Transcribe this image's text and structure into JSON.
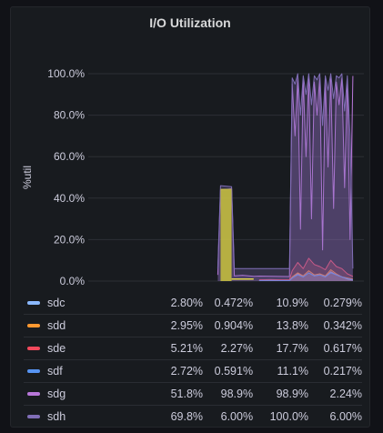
{
  "panel": {
    "title": "I/O Utilization"
  },
  "chart_data": {
    "type": "area",
    "title": "I/O Utilization",
    "ylabel": "%util",
    "xlabel": "",
    "ylim": [
      0,
      100
    ],
    "yticks": [
      "0.0%",
      "20.0%",
      "40.0%",
      "60.0%",
      "80.0%",
      "100.0%"
    ],
    "grid": true,
    "legend_placement": "bottom",
    "time_window": [
      0,
      100
    ],
    "series": [
      {
        "name": "sdc",
        "color": "#8ab8ff",
        "mean": "2.80%",
        "last": "0.472%",
        "max": "10.9%",
        "min": "0.279%",
        "points": [
          [
            62,
            0.3
          ],
          [
            66,
            0.4
          ],
          [
            70,
            0.3
          ],
          [
            73,
            0.3
          ],
          [
            74,
            1.5
          ],
          [
            76,
            3.5
          ],
          [
            78,
            2.0
          ],
          [
            80,
            4.0
          ],
          [
            82,
            2.5
          ],
          [
            84,
            3.0
          ],
          [
            86,
            2.0
          ],
          [
            88,
            4.5
          ],
          [
            90,
            3.0
          ],
          [
            92,
            2.0
          ],
          [
            94,
            1.0
          ],
          [
            96,
            0.5
          ]
        ]
      },
      {
        "name": "sdd",
        "color": "#ff9830",
        "mean": "2.95%",
        "last": "0.904%",
        "max": "13.8%",
        "min": "0.342%",
        "points": [
          [
            62,
            0.3
          ],
          [
            66,
            0.4
          ],
          [
            70,
            0.3
          ],
          [
            73,
            0.3
          ],
          [
            74,
            2.0
          ],
          [
            76,
            4.0
          ],
          [
            78,
            2.5
          ],
          [
            80,
            5.0
          ],
          [
            82,
            3.0
          ],
          [
            84,
            3.5
          ],
          [
            86,
            2.5
          ],
          [
            88,
            5.5
          ],
          [
            90,
            3.5
          ],
          [
            92,
            2.0
          ],
          [
            94,
            1.5
          ],
          [
            96,
            0.9
          ]
        ]
      },
      {
        "name": "sde",
        "color": "#f2495c",
        "mean": "5.21%",
        "last": "2.27%",
        "max": "17.7%",
        "min": "0.617%",
        "points": [
          [
            62,
            0.6
          ],
          [
            66,
            0.7
          ],
          [
            70,
            0.6
          ],
          [
            73,
            0.6
          ],
          [
            74,
            5.0
          ],
          [
            76,
            9.0
          ],
          [
            78,
            6.0
          ],
          [
            80,
            11.0
          ],
          [
            82,
            8.0
          ],
          [
            84,
            7.0
          ],
          [
            86,
            5.5
          ],
          [
            88,
            10.0
          ],
          [
            90,
            7.0
          ],
          [
            92,
            6.0
          ],
          [
            94,
            3.5
          ],
          [
            96,
            2.3
          ]
        ]
      },
      {
        "name": "sdf",
        "color": "#5794f2",
        "mean": "2.72%",
        "last": "0.591%",
        "max": "11.1%",
        "min": "0.217%",
        "points": [
          [
            62,
            0.2
          ],
          [
            66,
            0.3
          ],
          [
            70,
            0.2
          ],
          [
            73,
            0.2
          ],
          [
            74,
            1.5
          ],
          [
            76,
            3.0
          ],
          [
            78,
            2.0
          ],
          [
            80,
            4.0
          ],
          [
            82,
            2.5
          ],
          [
            84,
            3.0
          ],
          [
            86,
            2.0
          ],
          [
            88,
            4.0
          ],
          [
            90,
            3.0
          ],
          [
            92,
            2.0
          ],
          [
            94,
            1.2
          ],
          [
            96,
            0.6
          ]
        ]
      },
      {
        "name": "sdg",
        "color": "#b877d9",
        "mean": "51.8%",
        "last": "98.9%",
        "max": "98.9%",
        "min": "2.24%",
        "points": [
          [
            47,
            3.0
          ],
          [
            48,
            44.0
          ],
          [
            52,
            44.5
          ],
          [
            53,
            2.5
          ],
          [
            56,
            2.8
          ],
          [
            60,
            2.3
          ],
          [
            62,
            2.4
          ],
          [
            73,
            2.2
          ],
          [
            74,
            95.0
          ],
          [
            75,
            70.0
          ],
          [
            76,
            98.0
          ],
          [
            77,
            25.0
          ],
          [
            78,
            97.0
          ],
          [
            79,
            60.0
          ],
          [
            80,
            98.0
          ],
          [
            81,
            30.0
          ],
          [
            82,
            96.0
          ],
          [
            83,
            80.0
          ],
          [
            84,
            98.0
          ],
          [
            85,
            15.0
          ],
          [
            86,
            97.0
          ],
          [
            87,
            55.0
          ],
          [
            88,
            98.0
          ],
          [
            89,
            35.0
          ],
          [
            90,
            96.0
          ],
          [
            91,
            85.0
          ],
          [
            92,
            98.0
          ],
          [
            93,
            45.0
          ],
          [
            94,
            97.0
          ],
          [
            95,
            20.0
          ],
          [
            96,
            98.9
          ]
        ]
      },
      {
        "name": "sdh",
        "color": "#806eb7",
        "mean": "69.8%",
        "last": "6.00%",
        "max": "100.0%",
        "min": "6.00%",
        "points": [
          [
            47,
            6.0
          ],
          [
            48,
            46.0
          ],
          [
            52,
            45.5
          ],
          [
            53,
            6.0
          ],
          [
            73,
            6.0
          ],
          [
            74,
            98.0
          ],
          [
            75,
            95.0
          ],
          [
            76,
            100.0
          ],
          [
            77,
            80.0
          ],
          [
            78,
            99.0
          ],
          [
            79,
            90.0
          ],
          [
            80,
            100.0
          ],
          [
            81,
            85.0
          ],
          [
            82,
            99.0
          ],
          [
            83,
            97.0
          ],
          [
            84,
            100.0
          ],
          [
            85,
            75.0
          ],
          [
            86,
            99.0
          ],
          [
            87,
            92.0
          ],
          [
            88,
            100.0
          ],
          [
            89,
            88.0
          ],
          [
            90,
            99.0
          ],
          [
            91,
            98.0
          ],
          [
            92,
            100.0
          ],
          [
            93,
            82.0
          ],
          [
            94,
            99.0
          ],
          [
            95,
            70.0
          ],
          [
            96,
            6.0
          ]
        ]
      }
    ]
  }
}
